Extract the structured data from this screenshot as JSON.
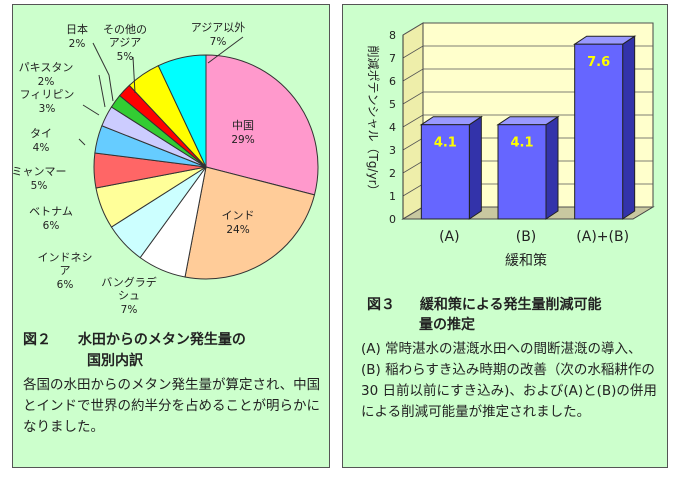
{
  "figure2": {
    "caption_number": "図２",
    "caption_title_line1": "水田からのメタン発生量の",
    "caption_title_line2": "国別内訳",
    "body": "各国の水田からのメタン発生量が算定され、中国とインドで世界の約半分を占めることが明らかになりました。"
  },
  "figure3": {
    "caption_number": "図３",
    "caption_title_line1": "緩和策による発生量削減可能",
    "caption_title_line2": "量の推定",
    "body": "(A) 常時湛水の湛漑水田への間断湛漑の導入、(B) 稲わらすき込み時期の改善（次の水稲耕作の 30 日前以前にすき込み)、および(A)と(B)の併用による削減可能量が推定されました。"
  },
  "chart_data": [
    {
      "type": "pie",
      "title": "",
      "slices": [
        {
          "label": "中国",
          "pct_label": "29%",
          "value": 29,
          "color": "#ff99cc"
        },
        {
          "label": "インド",
          "pct_label": "24%",
          "value": 24,
          "color": "#ffcc99"
        },
        {
          "label": "バングラデシュ",
          "label_lines": [
            "バングラデ",
            "シュ"
          ],
          "pct_label": "7%",
          "value": 7,
          "color": "#ffffff"
        },
        {
          "label": "インドネシア",
          "label_lines": [
            "インドネシ",
            "ア"
          ],
          "pct_label": "6%",
          "value": 6,
          "color": "#ccffff"
        },
        {
          "label": "ベトナム",
          "pct_label": "6%",
          "value": 6,
          "color": "#ffff99"
        },
        {
          "label": "ミャンマー",
          "pct_label": "5%",
          "value": 5,
          "color": "#ff6666"
        },
        {
          "label": "タイ",
          "pct_label": "4%",
          "value": 4,
          "color": "#66ccff"
        },
        {
          "label": "フィリピン",
          "pct_label": "3%",
          "value": 3,
          "color": "#ccccff"
        },
        {
          "label": "パキスタン",
          "pct_label": "2%",
          "value": 2,
          "color": "#33cc33"
        },
        {
          "label": "日本",
          "pct_label": "2%",
          "value": 2,
          "color": "#ff0000"
        },
        {
          "label": "その他のアジア",
          "label_lines": [
            "その他の",
            "アジア"
          ],
          "pct_label": "5%",
          "value": 5,
          "color": "#ffff00"
        },
        {
          "label": "アジア以外",
          "pct_label": "7%",
          "value": 7,
          "color": "#00ffff"
        }
      ]
    },
    {
      "type": "bar",
      "title": "",
      "categories": [
        "(A)",
        "(B)",
        "(A)+(B)"
      ],
      "values": [
        4.1,
        4.1,
        7.6
      ],
      "value_labels": [
        "4.1",
        "4.1",
        "7.6"
      ],
      "xlabel": "緩和策",
      "ylabel": "削減ポテンシャル（Tg/yr）",
      "ylim": [
        0,
        8
      ],
      "yticks": [
        0,
        1,
        2,
        3,
        4,
        5,
        6,
        7,
        8
      ],
      "bar_color": "#6666ff",
      "wall_color": "#ffffcc"
    }
  ]
}
